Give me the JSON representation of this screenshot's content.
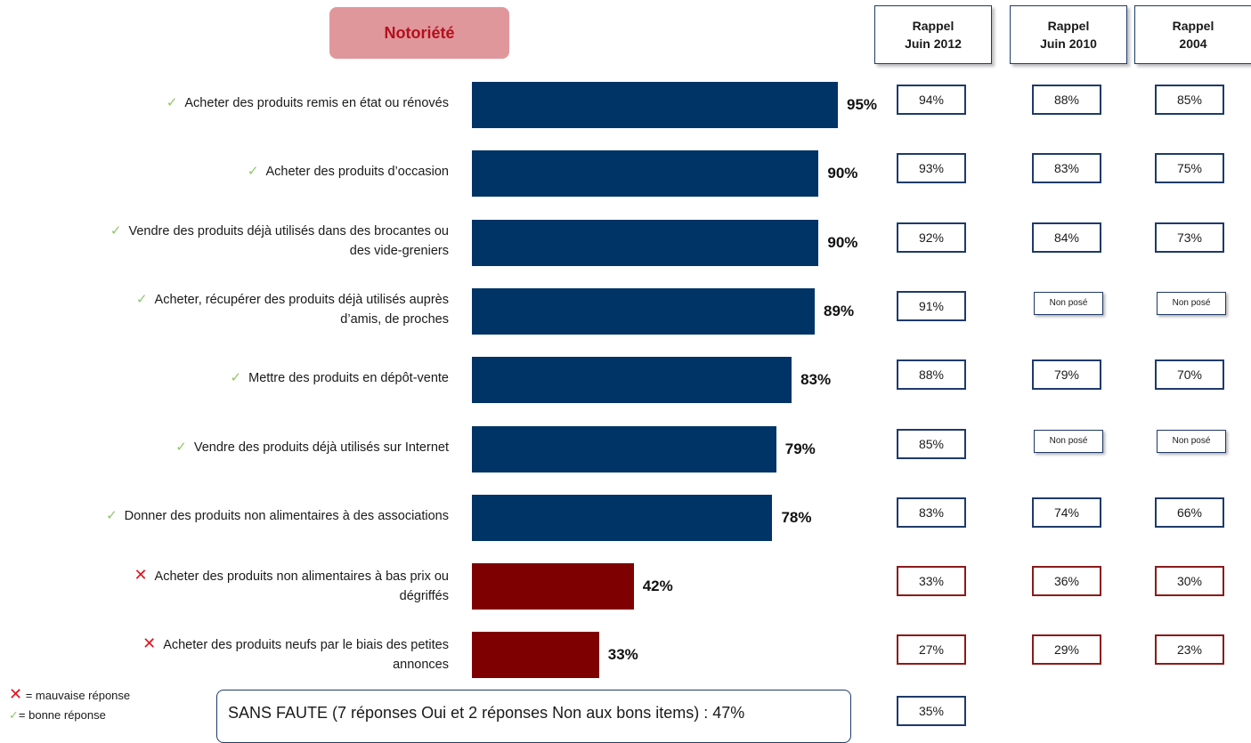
{
  "title": "Notoriété",
  "columns": [
    {
      "line1": "Rappel",
      "line2": "Juin 2012"
    },
    {
      "line1": "Rappel",
      "line2": "Juin 2010"
    },
    {
      "line1": "Rappel",
      "line2": "2004"
    }
  ],
  "colors": {
    "positive": "#003366",
    "negative": "#7f0000",
    "check": "#92c56b",
    "cross": "#e3121e"
  },
  "chart_data": {
    "type": "bar",
    "orientation": "horizontal",
    "title": "Notoriété",
    "categories": [
      "Acheter des produits remis en état ou rénovés",
      "Acheter des produits d’occasion",
      "Vendre des produits déjà utilisés dans des brocantes ou des vide-greniers",
      "Acheter, récupérer des produits déjà utilisés auprès d’amis, de proches",
      "Mettre des produits en dépôt-vente",
      "Vendre des produits déjà utilisés sur Internet",
      "Donner des produits non alimentaires à des associations",
      "Acheter des produits non alimentaires à bas prix ou dégriffés",
      "Acheter des produits neufs par le biais des petites annonces"
    ],
    "values": [
      95,
      90,
      90,
      89,
      83,
      79,
      78,
      42,
      33
    ],
    "value_labels": [
      "95%",
      "90%",
      "90%",
      "89%",
      "83%",
      "79%",
      "78%",
      "42%",
      "33%"
    ],
    "correct": [
      true,
      true,
      true,
      true,
      true,
      true,
      true,
      false,
      false
    ],
    "xlim": [
      0,
      100
    ]
  },
  "rows": [
    {
      "label_lines": [
        "Acheter des produits remis en état ou rénovés"
      ],
      "correct": true,
      "value": 95,
      "value_label": "95%",
      "r2012": "94%",
      "r2010": "88%",
      "r2004": "85%"
    },
    {
      "label_lines": [
        "Acheter des produits d’occasion"
      ],
      "correct": true,
      "value": 90,
      "value_label": "90%",
      "r2012": "93%",
      "r2010": "83%",
      "r2004": "75%"
    },
    {
      "label_lines": [
        "Vendre des produits déjà utilisés dans des brocantes ou",
        "des vide-greniers"
      ],
      "correct": true,
      "value": 90,
      "value_label": "90%",
      "r2012": "92%",
      "r2010": "84%",
      "r2004": "73%"
    },
    {
      "label_lines": [
        "Acheter, récupérer des produits déjà utilisés auprès",
        "d’amis, de proches"
      ],
      "correct": true,
      "value": 89,
      "value_label": "89%",
      "r2012": "91%",
      "r2010": "Non posé",
      "r2004": "Non posé"
    },
    {
      "label_lines": [
        "Mettre des produits en dépôt-vente"
      ],
      "correct": true,
      "value": 83,
      "value_label": "83%",
      "r2012": "88%",
      "r2010": "79%",
      "r2004": "70%"
    },
    {
      "label_lines": [
        "Vendre des produits déjà utilisés sur Internet"
      ],
      "correct": true,
      "value": 79,
      "value_label": "79%",
      "r2012": "85%",
      "r2010": "Non posé",
      "r2004": "Non posé"
    },
    {
      "label_lines": [
        "Donner des produits non alimentaires à des associations"
      ],
      "correct": true,
      "value": 78,
      "value_label": "78%",
      "r2012": "83%",
      "r2010": "74%",
      "r2004": "66%"
    },
    {
      "label_lines": [
        "Acheter des produits non alimentaires à bas prix ou",
        "dégriffés"
      ],
      "correct": false,
      "value": 42,
      "value_label": "42%",
      "r2012": "33%",
      "r2010": "36%",
      "r2004": "30%"
    },
    {
      "label_lines": [
        "Acheter des produits neufs par le biais des petites",
        "annonces"
      ],
      "correct": false,
      "value": 33,
      "value_label": "33%",
      "r2012": "27%",
      "r2010": "29%",
      "r2004": "23%"
    }
  ],
  "legend": {
    "cross_symbol": "✕",
    "cross_text": " = mauvaise réponse",
    "check_symbol": "✓",
    "check_text": "= bonne réponse"
  },
  "footer": {
    "text": "SANS FAUTE (7 réponses Oui et 2 réponses Non aux bons items) : 47%",
    "r2012": "35%"
  }
}
